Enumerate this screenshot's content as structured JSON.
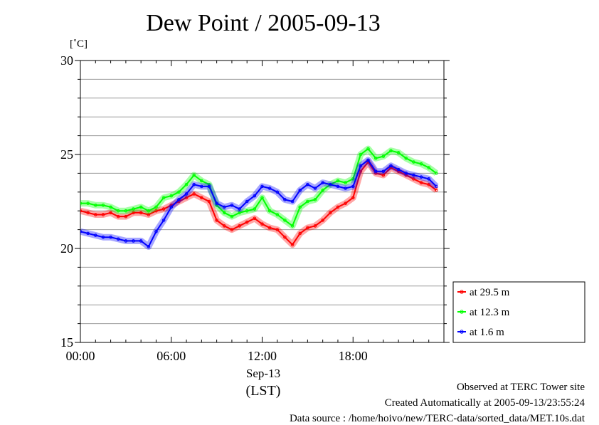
{
  "chart_data": {
    "type": "line",
    "title": "Dew Point / 2005-09-13",
    "ylabel": "[˚C]",
    "ylim": [
      15,
      30
    ],
    "yticks": [
      15,
      20,
      25,
      30
    ],
    "ytick_labels": [
      "15",
      "20",
      "25",
      "30"
    ],
    "xlim": [
      0,
      24
    ],
    "xticks": [
      0,
      6,
      12,
      18
    ],
    "xtick_labels": [
      "00:00",
      "06:00",
      "12:00",
      "18:00"
    ],
    "xlabel_date": "Sep-13",
    "xlabel_tz": "(LST)",
    "grid": true,
    "legend_position": "lower-right outside plot",
    "x": [
      0,
      0.5,
      1,
      1.5,
      2,
      2.5,
      3,
      3.5,
      4,
      4.5,
      5,
      5.5,
      6,
      6.5,
      7,
      7.5,
      8,
      8.5,
      9,
      9.5,
      10,
      10.5,
      11,
      11.5,
      12,
      12.5,
      13,
      13.5,
      14,
      14.5,
      15,
      15.5,
      16,
      16.5,
      17,
      17.5,
      18,
      18.5,
      19,
      19.5,
      20,
      20.5,
      21,
      21.5,
      22,
      22.5,
      23,
      23.5
    ],
    "series": [
      {
        "name": "at 29.5 m",
        "color": "#ff0000",
        "values": [
          22.0,
          21.9,
          21.8,
          21.8,
          21.9,
          21.7,
          21.7,
          21.9,
          21.9,
          21.8,
          22.0,
          22.1,
          22.3,
          22.5,
          22.7,
          22.9,
          22.7,
          22.5,
          21.5,
          21.2,
          21.0,
          21.2,
          21.4,
          21.6,
          21.3,
          21.1,
          21.0,
          20.6,
          20.2,
          20.8,
          21.1,
          21.2,
          21.5,
          21.9,
          22.2,
          22.4,
          22.7,
          24.1,
          24.6,
          24.0,
          23.9,
          24.3,
          24.1,
          23.9,
          23.7,
          23.5,
          23.4,
          23.1
        ]
      },
      {
        "name": "at 12.3 m",
        "color": "#00ff00",
        "values": [
          22.4,
          22.4,
          22.3,
          22.3,
          22.2,
          22.0,
          22.0,
          22.1,
          22.2,
          22.0,
          22.2,
          22.7,
          22.8,
          23.0,
          23.4,
          23.9,
          23.6,
          23.4,
          22.3,
          21.9,
          21.7,
          21.9,
          22.0,
          22.1,
          22.7,
          22.0,
          21.8,
          21.5,
          21.2,
          22.2,
          22.5,
          22.6,
          23.1,
          23.4,
          23.6,
          23.5,
          23.7,
          25.0,
          25.3,
          24.8,
          24.9,
          25.2,
          25.1,
          24.8,
          24.6,
          24.5,
          24.3,
          24.0
        ]
      },
      {
        "name": "at 1.6 m",
        "color": "#0000ff",
        "values": [
          20.9,
          20.8,
          20.7,
          20.6,
          20.6,
          20.5,
          20.4,
          20.4,
          20.4,
          20.1,
          20.9,
          21.5,
          22.2,
          22.6,
          22.9,
          23.4,
          23.3,
          23.3,
          22.4,
          22.2,
          22.3,
          22.1,
          22.5,
          22.8,
          23.3,
          23.2,
          23.0,
          22.6,
          22.5,
          23.1,
          23.4,
          23.2,
          23.5,
          23.4,
          23.3,
          23.2,
          23.3,
          24.4,
          24.7,
          24.1,
          24.1,
          24.4,
          24.2,
          24.0,
          23.9,
          23.8,
          23.7,
          23.3
        ]
      }
    ]
  },
  "footer": {
    "line1": "Observed at TERC Tower site",
    "line2": "Created Automatically at 2005-09-13/23:55:24",
    "line3": "Data source : /home/hoivo/new/TERC-data/sorted_data/MET.10s.dat"
  }
}
